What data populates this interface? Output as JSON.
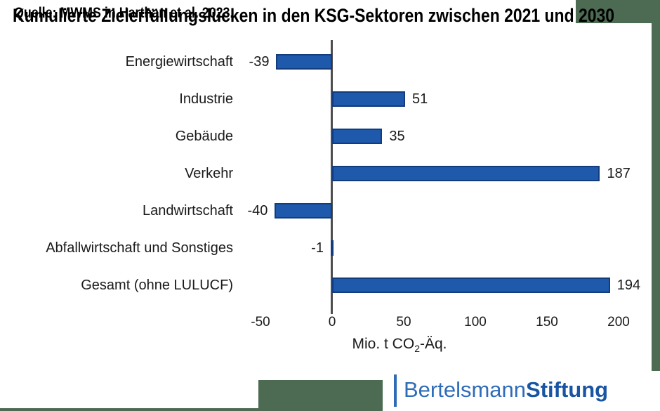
{
  "title": "Kumulierte Zielerfüllungslücken in den KSG-Sektoren zwischen 2021 und 2030",
  "source": "Quelle: MWMS in Harthan et al. 2023.",
  "logo": {
    "brand": "Bertelsmann",
    "brand_bold": "Stiftung"
  },
  "colors": {
    "background_green": "#4c6b52",
    "bar_fill": "#1e59ac",
    "bar_border": "#123c7e",
    "axis_gray": "#4d4d4d",
    "logo_blue": "#2f6cb8",
    "logo_blue_dark": "#1a55a3"
  },
  "chart_data": {
    "type": "bar",
    "orientation": "horizontal",
    "categories": [
      "Energiewirtschaft",
      "Industrie",
      "Gebäude",
      "Verkehr",
      "Landwirtschaft",
      "Abfallwirtschaft und Sonstiges",
      "Gesamt (ohne LULUCF)"
    ],
    "values": [
      -39,
      51,
      35,
      187,
      -40,
      -1,
      194
    ],
    "xticks": [
      -50,
      0,
      50,
      100,
      150,
      200
    ],
    "xlim": [
      -50,
      229
    ],
    "xlabel": {
      "pre": "Mio. t CO",
      "sub": "2",
      "post": "-Äq."
    },
    "grid": false,
    "legend": "none",
    "value_labels": "outside-end"
  }
}
